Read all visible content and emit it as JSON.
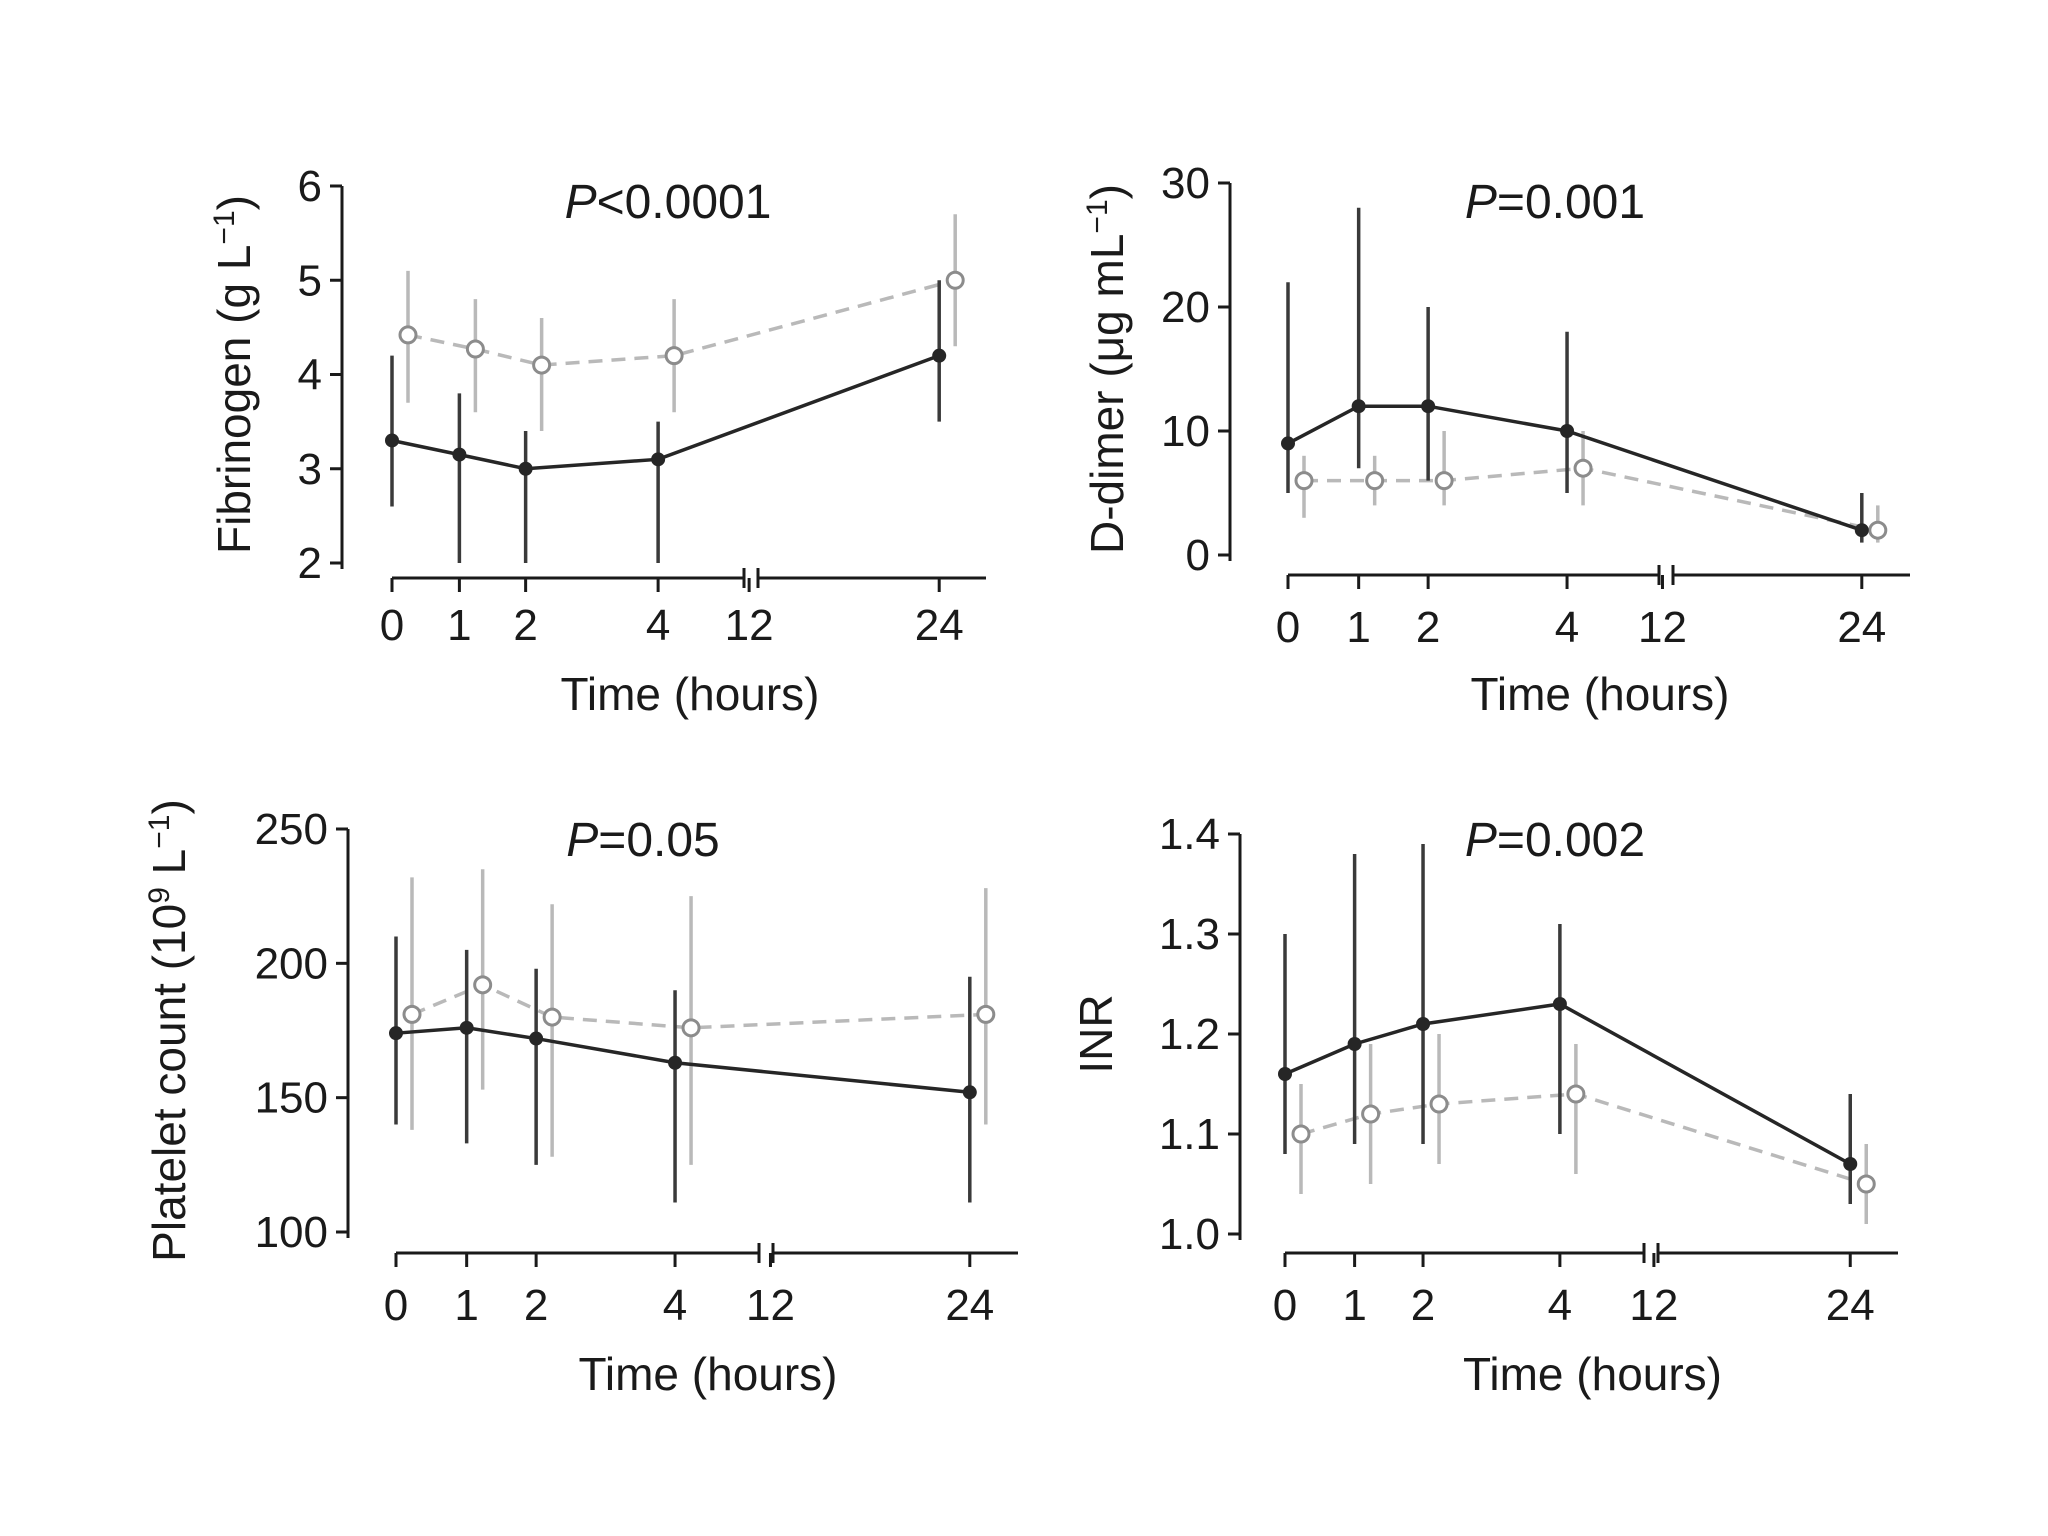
{
  "colors": {
    "ink": "#1a1a1a",
    "filled_series": "#262626",
    "open_series": "#b9b9b9",
    "open_marker_stroke": "#8c8c8c"
  },
  "chart_data": [
    {
      "type": "line",
      "title": "P<0.0001",
      "title_parts": {
        "italic": "P",
        "rest": "<0.0001"
      },
      "ylabel": "Fibrinogen (g L",
      "ylabel_sup": "−1",
      "ylabel_close": ")",
      "xlabel": "Time (hours)",
      "x_ticks": [
        "0",
        "1",
        "2",
        "4",
        "12",
        "24"
      ],
      "x_axis_break_after": "4",
      "y_ticks": [
        "2",
        "3",
        "4",
        "5",
        "6"
      ],
      "ylim": [
        2,
        6
      ],
      "grid": false,
      "series": [
        {
          "marker": "filled",
          "points": [
            {
              "x": "0",
              "y": 3.3,
              "lo": 2.6,
              "hi": 4.2
            },
            {
              "x": "1",
              "y": 3.15,
              "lo": 2.0,
              "hi": 3.8
            },
            {
              "x": "2",
              "y": 3.0,
              "lo": 2.0,
              "hi": 3.4
            },
            {
              "x": "4",
              "y": 3.1,
              "lo": 2.0,
              "hi": 3.5
            },
            {
              "x": "24",
              "y": 4.2,
              "lo": 3.5,
              "hi": 5.0
            }
          ]
        },
        {
          "marker": "open",
          "points": [
            {
              "x": "0",
              "y": 4.42,
              "lo": 3.7,
              "hi": 5.1
            },
            {
              "x": "1",
              "y": 4.27,
              "lo": 3.6,
              "hi": 4.8
            },
            {
              "x": "2",
              "y": 4.1,
              "lo": 3.4,
              "hi": 4.6
            },
            {
              "x": "4",
              "y": 4.2,
              "lo": 3.6,
              "hi": 4.8
            },
            {
              "x": "24",
              "y": 5.0,
              "lo": 4.3,
              "hi": 5.7
            }
          ]
        }
      ]
    },
    {
      "type": "line",
      "title": "P=0.001",
      "title_parts": {
        "italic": "P",
        "rest": "=0.001"
      },
      "ylabel": "D-dimer (μg mL",
      "ylabel_sup": "−1",
      "ylabel_close": ")",
      "xlabel": "Time (hours)",
      "x_ticks": [
        "0",
        "1",
        "2",
        "4",
        "12",
        "24"
      ],
      "x_axis_break_after": "4",
      "y_ticks": [
        "0",
        "10",
        "20",
        "30"
      ],
      "ylim": [
        0,
        30
      ],
      "grid": false,
      "series": [
        {
          "marker": "filled",
          "points": [
            {
              "x": "0",
              "y": 9,
              "lo": 5,
              "hi": 22
            },
            {
              "x": "1",
              "y": 12,
              "lo": 7,
              "hi": 28
            },
            {
              "x": "2",
              "y": 12,
              "lo": 6,
              "hi": 20
            },
            {
              "x": "4",
              "y": 10,
              "lo": 5,
              "hi": 18
            },
            {
              "x": "24",
              "y": 2,
              "lo": 1,
              "hi": 5
            }
          ]
        },
        {
          "marker": "open",
          "points": [
            {
              "x": "0",
              "y": 6,
              "lo": 3,
              "hi": 8
            },
            {
              "x": "1",
              "y": 6,
              "lo": 4,
              "hi": 8
            },
            {
              "x": "2",
              "y": 6,
              "lo": 4,
              "hi": 10
            },
            {
              "x": "4",
              "y": 7,
              "lo": 4,
              "hi": 10
            },
            {
              "x": "24",
              "y": 2,
              "lo": 1,
              "hi": 4
            }
          ]
        }
      ]
    },
    {
      "type": "line",
      "title": "P=0.05",
      "title_parts": {
        "italic": "P",
        "rest": "=0.05"
      },
      "ylabel": "Platelet count (10",
      "ylabel_sup": "9",
      "ylabel_mid": " L",
      "ylabel_sup2": "−1",
      "ylabel_close": ")",
      "xlabel": "Time (hours)",
      "x_ticks": [
        "0",
        "1",
        "2",
        "4",
        "12",
        "24"
      ],
      "x_axis_break_after": "4",
      "y_ticks": [
        "100",
        "150",
        "200",
        "250"
      ],
      "ylim": [
        100,
        250
      ],
      "grid": false,
      "series": [
        {
          "marker": "filled",
          "points": [
            {
              "x": "0",
              "y": 174,
              "lo": 140,
              "hi": 210
            },
            {
              "x": "1",
              "y": 176,
              "lo": 133,
              "hi": 205
            },
            {
              "x": "2",
              "y": 172,
              "lo": 125,
              "hi": 198
            },
            {
              "x": "4",
              "y": 163,
              "lo": 111,
              "hi": 190
            },
            {
              "x": "24",
              "y": 152,
              "lo": 111,
              "hi": 195
            }
          ]
        },
        {
          "marker": "open",
          "points": [
            {
              "x": "0",
              "y": 181,
              "lo": 138,
              "hi": 232
            },
            {
              "x": "1",
              "y": 192,
              "lo": 153,
              "hi": 235
            },
            {
              "x": "2",
              "y": 180,
              "lo": 128,
              "hi": 222
            },
            {
              "x": "4",
              "y": 176,
              "lo": 125,
              "hi": 225
            },
            {
              "x": "24",
              "y": 181,
              "lo": 140,
              "hi": 228
            }
          ]
        }
      ]
    },
    {
      "type": "line",
      "title": "P=0.002",
      "title_parts": {
        "italic": "P",
        "rest": "=0.002"
      },
      "ylabel": "INR",
      "ylabel_sup": "",
      "ylabel_close": "",
      "xlabel": "Time (hours)",
      "x_ticks": [
        "0",
        "1",
        "2",
        "4",
        "12",
        "24"
      ],
      "x_axis_break_after": "4",
      "y_ticks": [
        "1.0",
        "1.1",
        "1.2",
        "1.3",
        "1.4"
      ],
      "ylim": [
        1.0,
        1.4
      ],
      "grid": false,
      "series": [
        {
          "marker": "filled",
          "points": [
            {
              "x": "0",
              "y": 1.16,
              "lo": 1.08,
              "hi": 1.3
            },
            {
              "x": "1",
              "y": 1.19,
              "lo": 1.09,
              "hi": 1.38
            },
            {
              "x": "2",
              "y": 1.21,
              "lo": 1.09,
              "hi": 1.39
            },
            {
              "x": "4",
              "y": 1.23,
              "lo": 1.1,
              "hi": 1.31
            },
            {
              "x": "24",
              "y": 1.07,
              "lo": 1.03,
              "hi": 1.14
            }
          ]
        },
        {
          "marker": "open",
          "points": [
            {
              "x": "0",
              "y": 1.1,
              "lo": 1.04,
              "hi": 1.15
            },
            {
              "x": "1",
              "y": 1.12,
              "lo": 1.05,
              "hi": 1.19
            },
            {
              "x": "2",
              "y": 1.13,
              "lo": 1.07,
              "hi": 1.2
            },
            {
              "x": "4",
              "y": 1.14,
              "lo": 1.06,
              "hi": 1.19
            },
            {
              "x": "24",
              "y": 1.05,
              "lo": 1.01,
              "hi": 1.09
            }
          ]
        }
      ]
    }
  ]
}
